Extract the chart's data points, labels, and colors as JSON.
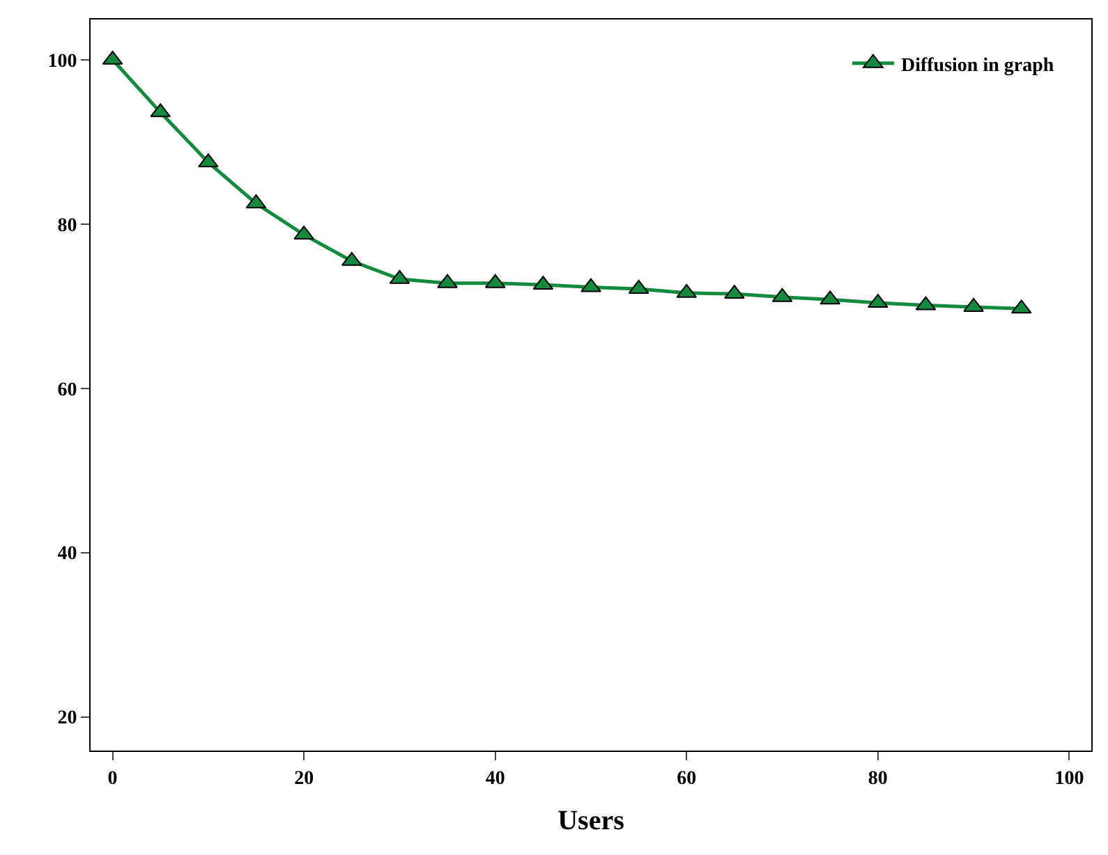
{
  "chart_data": {
    "type": "line",
    "xlabel": "Users",
    "x": [
      0,
      5,
      10,
      15,
      20,
      25,
      30,
      35,
      40,
      45,
      50,
      55,
      60,
      65,
      70,
      75,
      80,
      85,
      90,
      95
    ],
    "series": [
      {
        "name": "Diffusion in graph",
        "color": "#138a3e",
        "values": [
          100,
          93.6,
          87.5,
          82.5,
          78.7,
          75.5,
          73.3,
          72.8,
          72.8,
          72.6,
          72.3,
          72.1,
          71.6,
          71.5,
          71.1,
          70.8,
          70.4,
          70.1,
          69.9,
          69.7
        ]
      }
    ],
    "xlim": [
      -2.3,
      102.3
    ],
    "ylim": [
      15.9,
      104.9
    ],
    "xticks": [
      0,
      20,
      40,
      60,
      80,
      100
    ],
    "yticks": [
      20,
      40,
      60,
      80,
      100
    ],
    "legend": "top right",
    "marker": "triangle",
    "line_style": "solid"
  }
}
